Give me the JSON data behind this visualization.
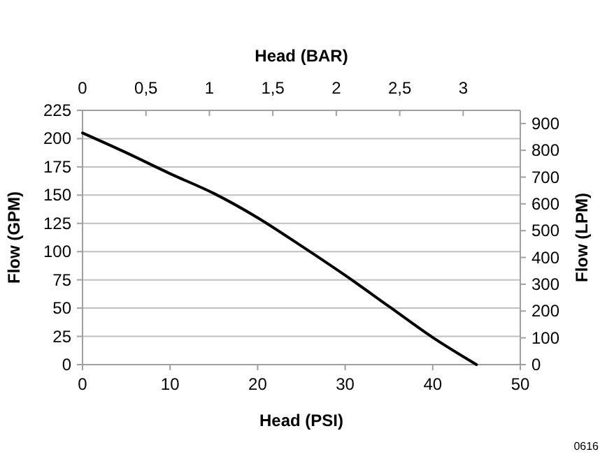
{
  "chart_data": {
    "type": "line",
    "xlabel": "Head (PSI)",
    "x2label": "Head (BAR)",
    "ylabel": "Flow (GPM)",
    "y2label": "Flow (LPM)",
    "xlim": [
      0,
      50
    ],
    "xticks": [
      0,
      10,
      20,
      30,
      40,
      50
    ],
    "x2lim": [
      0,
      3.45
    ],
    "x2ticks": [
      0,
      {
        "value": 0.5,
        "label": "0,5"
      },
      1,
      {
        "value": 1.5,
        "label": "1,5"
      },
      2,
      {
        "value": 2.5,
        "label": "2,5"
      },
      3
    ],
    "ylim": [
      0,
      225
    ],
    "yticks": [
      0,
      25,
      50,
      75,
      100,
      125,
      150,
      175,
      200,
      225
    ],
    "y2lim": [
      0,
      949
    ],
    "y2ticks": [
      0,
      100,
      200,
      300,
      400,
      500,
      600,
      700,
      800,
      900
    ],
    "grid": "y",
    "marker": "none",
    "line_style": "solid",
    "annotations": [
      "0616"
    ],
    "series": [
      {
        "color": "#000000",
        "x": [
          0,
          5,
          10,
          15,
          20,
          25,
          30,
          35,
          40,
          45
        ],
        "values": [
          205,
          187.5,
          169,
          151.5,
          130,
          105,
          79,
          51.5,
          24,
          0
        ]
      }
    ]
  }
}
